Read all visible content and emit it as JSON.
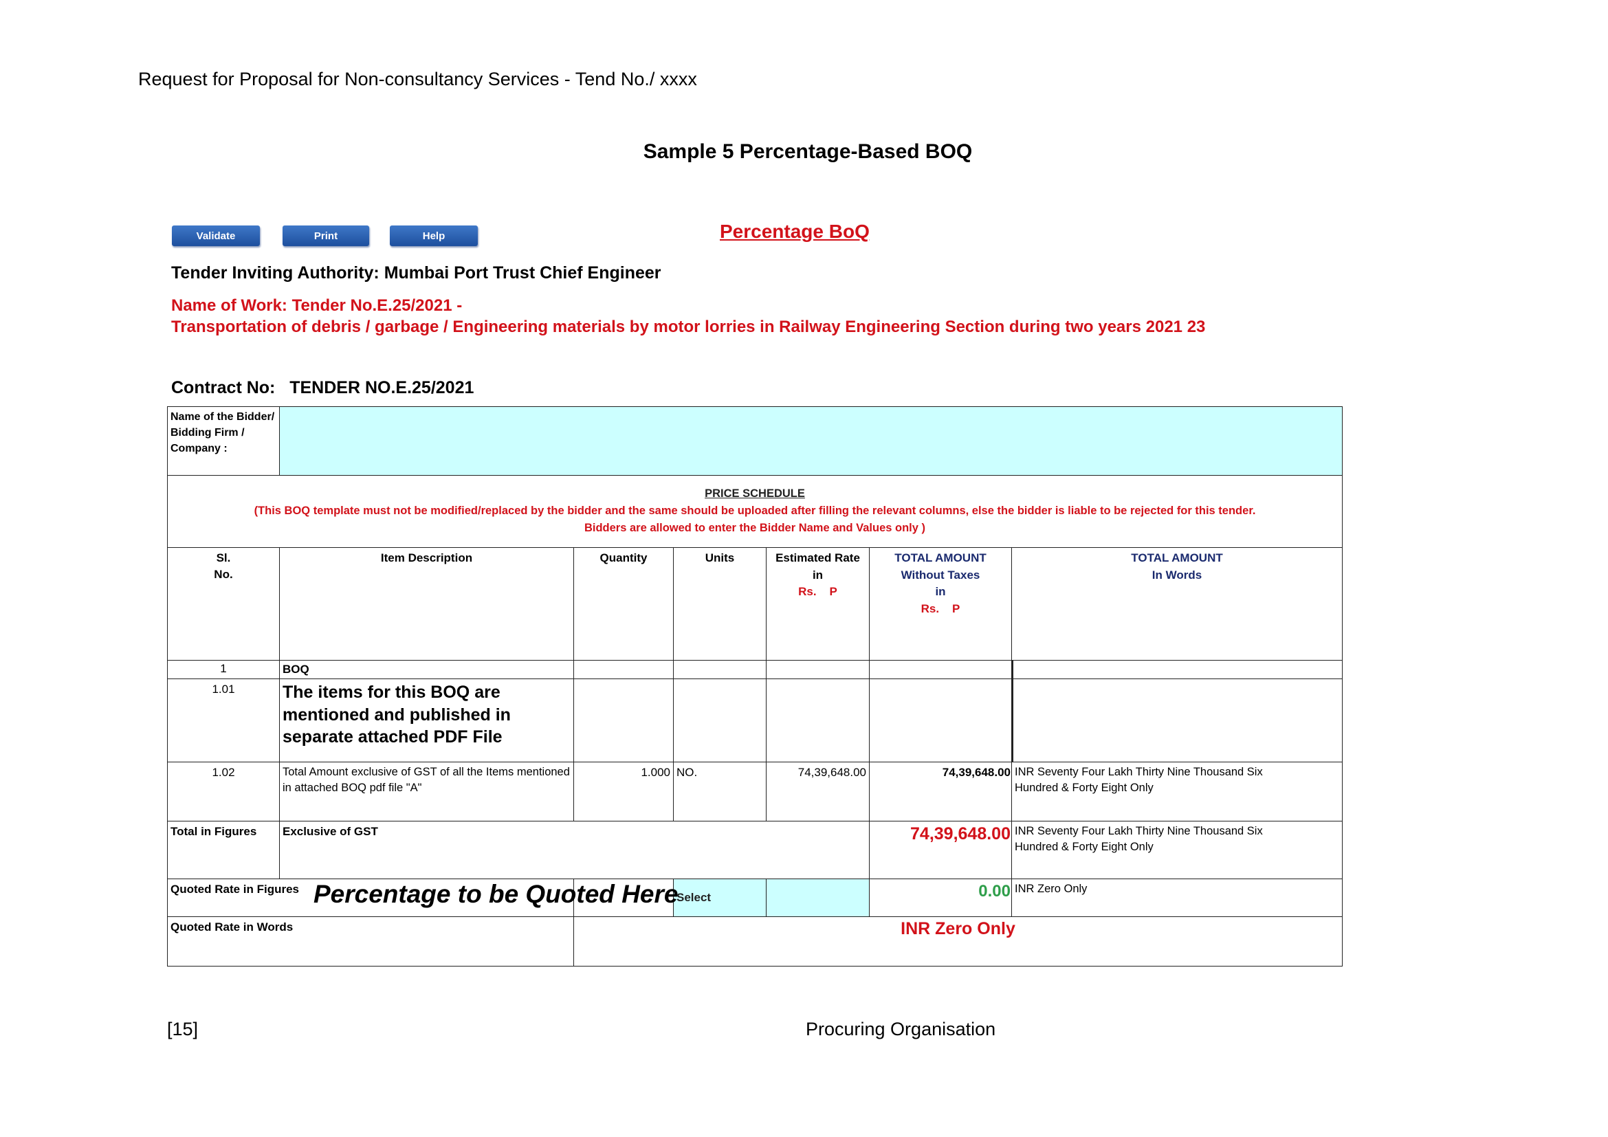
{
  "page_header": "Request for Proposal for Non-consultancy Services - Tend No./ xxxx",
  "title": "Sample 5 Percentage-Based BOQ",
  "toolbar": {
    "validate": "Validate",
    "print": "Print",
    "help": "Help"
  },
  "boq_title": "Percentage BoQ",
  "authority": "Tender Inviting Authority:  Mumbai Port Trust Chief Engineer",
  "name_of_work_line1": "Name of Work: Tender No.E.25/2021 -",
  "name_of_work_line2": "Transportation of debris / garbage / Engineering materials by motor lorries in Railway Engineering Section during two years 2021 23",
  "contract_no": "Contract No:   TENDER NO.E.25/2021",
  "bidder_label": "Name of the Bidder/ Bidding Firm / Company :",
  "bidder_value": "",
  "price_schedule": {
    "heading": "PRICE SCHEDULE",
    "note1": "(This BOQ template must not be modified/replaced by the bidder and the same should be uploaded after filling the relevant columns, else the bidder is liable to be rejected for this tender.",
    "note2": "Bidders are allowed to enter the Bidder Name and Values only )"
  },
  "columns": {
    "sl": "Sl.\nNo.",
    "desc": "Item Description",
    "qty": "Quantity",
    "units": "Units",
    "rate_l1": "Estimated Rate",
    "rate_l2": "in",
    "rate_l3": "Rs.    P",
    "total_l1": "TOTAL AMOUNT",
    "total_l2": "Without Taxes",
    "total_l3": "in",
    "total_l4": "Rs.    P",
    "words_l1": "TOTAL AMOUNT",
    "words_l2": "In Words"
  },
  "rows": [
    {
      "sl": "1",
      "desc": "BOQ"
    },
    {
      "sl": "1.01",
      "desc": "The items for this BOQ are mentioned and published in separate attached PDF File"
    },
    {
      "sl": "1.02",
      "desc": "Total Amount exclusive of GST of all the Items mentioned in attached BOQ pdf file \"A\"",
      "qty": "1.000",
      "units": "NO.",
      "rate": "74,39,648.00",
      "total": "74,39,648.00",
      "words": "INR  Seventy Four Lakh Thirty Nine Thousand Six Hundred & Forty Eight  Only"
    }
  ],
  "total_row": {
    "label": "Total in Figures",
    "desc": "Exclusive of GST",
    "amount": "74,39,648.00",
    "words": "INR  Seventy Four Lakh Thirty Nine Thousand Six Hundred & Forty Eight  Only"
  },
  "quoted_row": {
    "label": "Quoted Rate in Figures",
    "prompt": "Percentage to be Quoted Here",
    "select": "Select",
    "amount": "0.00",
    "words": "INR Zero Only"
  },
  "quoted_words_row": {
    "label": "Quoted Rate in Words",
    "value": "INR Zero Only"
  },
  "footer": {
    "page": "[15]",
    "org": "Procuring Organisation"
  },
  "colors": {
    "red": "#d2121a",
    "cyan": "#ccffff",
    "green": "#2e9e4a",
    "navy": "#1a2a6e",
    "button": "#2a5fb0"
  }
}
